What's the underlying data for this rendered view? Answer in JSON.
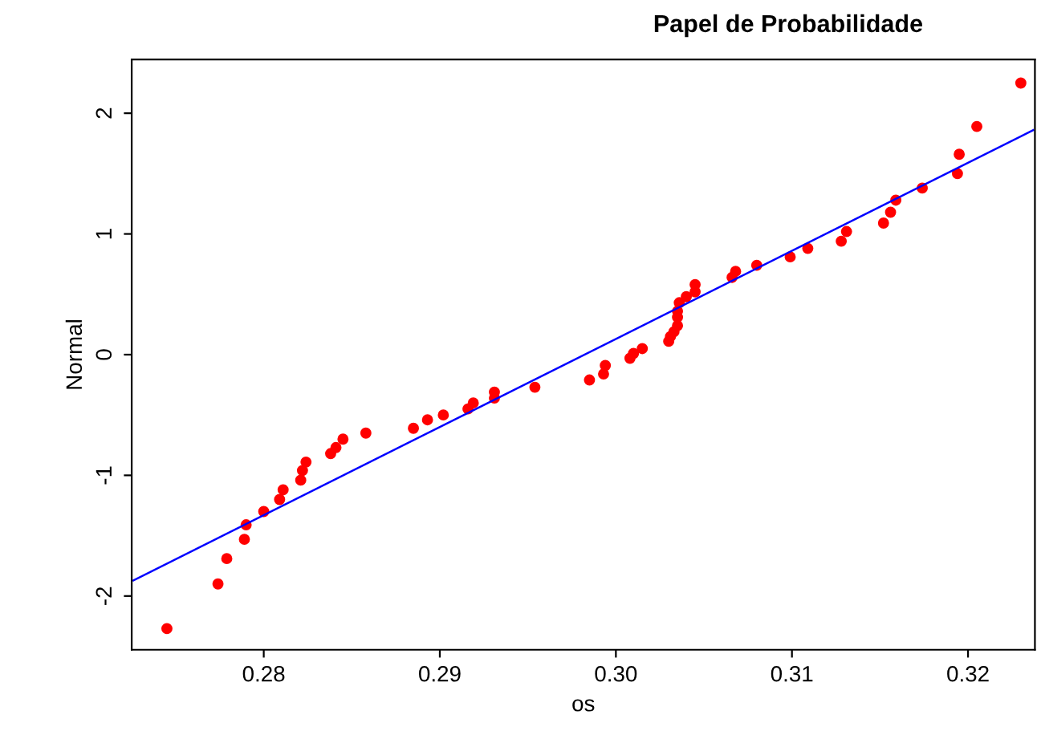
{
  "chart_data": {
    "type": "scatter",
    "title": "Papel de Probabilidade",
    "xlabel": "os",
    "ylabel": "Normal",
    "xlim": [
      0.2725,
      0.3238
    ],
    "ylim": [
      -2.445,
      2.445
    ],
    "xticks": [
      {
        "value": 0.28,
        "label": "0.28"
      },
      {
        "value": 0.29,
        "label": "0.29"
      },
      {
        "value": 0.3,
        "label": "0.30"
      },
      {
        "value": 0.31,
        "label": "0.31"
      },
      {
        "value": 0.32,
        "label": "0.32"
      }
    ],
    "yticks": [
      -2,
      -1,
      0,
      1,
      2
    ],
    "grid": false,
    "legend": false,
    "marker": "circle",
    "series": [
      {
        "color": "#ff0000",
        "x": [
          0.2745,
          0.2774,
          0.2779,
          0.2789,
          0.279,
          0.28,
          0.2809,
          0.2811,
          0.2821,
          0.2822,
          0.2824,
          0.2838,
          0.2841,
          0.2845,
          0.2858,
          0.2885,
          0.2893,
          0.2902,
          0.2916,
          0.2919,
          0.2931,
          0.2931,
          0.2954,
          0.2985,
          0.2993,
          0.2994,
          0.3008,
          0.301,
          0.3015,
          0.303,
          0.3031,
          0.3033,
          0.3035,
          0.3035,
          0.3035,
          0.3036,
          0.304,
          0.3045,
          0.3045,
          0.3066,
          0.3068,
          0.308,
          0.3099,
          0.3109,
          0.3128,
          0.3131,
          0.3152,
          0.3156,
          0.3159,
          0.3174,
          0.3194,
          0.3195,
          0.3205,
          0.323
        ],
        "values": [
          -2.27,
          -1.9,
          -1.69,
          -1.53,
          -1.41,
          -1.3,
          -1.2,
          -1.12,
          -1.04,
          -0.96,
          -0.89,
          -0.82,
          -0.77,
          -0.7,
          -0.65,
          -0.61,
          -0.54,
          -0.5,
          -0.45,
          -0.4,
          -0.36,
          -0.31,
          -0.27,
          -0.21,
          -0.16,
          -0.09,
          -0.03,
          0.01,
          0.05,
          0.11,
          0.15,
          0.19,
          0.24,
          0.31,
          0.36,
          0.43,
          0.48,
          0.52,
          0.58,
          0.64,
          0.69,
          0.74,
          0.81,
          0.88,
          0.94,
          1.02,
          1.09,
          1.18,
          1.28,
          1.38,
          1.5,
          1.66,
          1.89,
          2.25
        ]
      },
      {
        "type": "line",
        "color": "#0000ff",
        "line_style": "solid",
        "marker": "none",
        "x": [
          0.2726,
          0.3237
        ],
        "values": [
          -1.87,
          1.86
        ]
      }
    ]
  }
}
